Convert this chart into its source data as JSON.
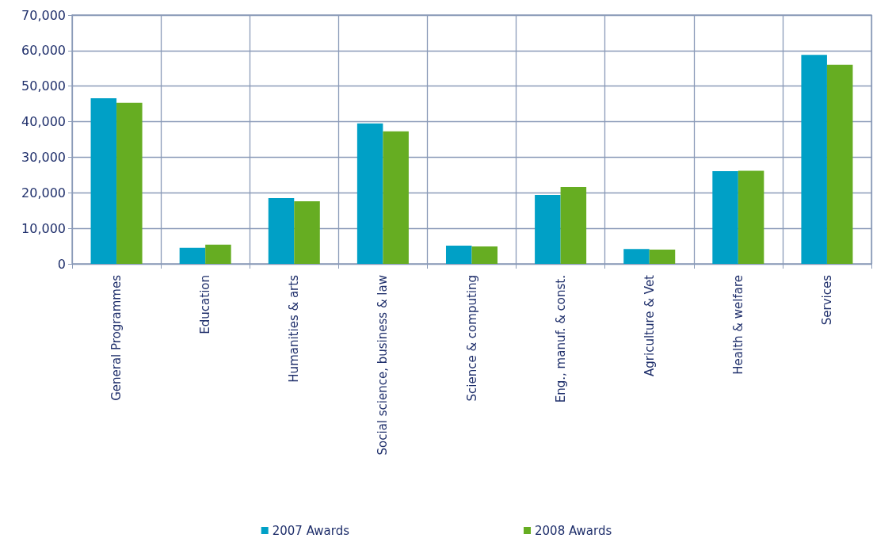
{
  "chart_data": {
    "type": "bar",
    "categories": [
      "General Programmes",
      "Education",
      "Humanities & arts",
      "Social science, business & law",
      "Science & computing",
      "Eng., manuf. & const.",
      "Agriculture & Vet",
      "Health & welfare",
      "Services"
    ],
    "series": [
      {
        "name": "2007 Awards",
        "color": "#00a0c6",
        "values": [
          46600,
          4500,
          18500,
          39500,
          5100,
          19400,
          4200,
          26100,
          58800
        ]
      },
      {
        "name": "2008 Awards",
        "color": "#66ad22",
        "values": [
          45300,
          5400,
          17600,
          37300,
          4900,
          21600,
          4000,
          26200,
          56000
        ]
      }
    ],
    "ylim": [
      0,
      70000
    ],
    "yticks": [
      0,
      {
        "value": 10000,
        "label": "10,000"
      },
      {
        "value": 20000,
        "label": "20,000"
      },
      {
        "value": 30000,
        "label": "30,000"
      },
      {
        "value": 40000,
        "label": "40,000"
      },
      {
        "value": 50000,
        "label": "50,000"
      },
      {
        "value": 60000,
        "label": "60,000"
      },
      {
        "value": 70000,
        "label": "70,000"
      }
    ],
    "grid": true,
    "legend": "bottom"
  }
}
